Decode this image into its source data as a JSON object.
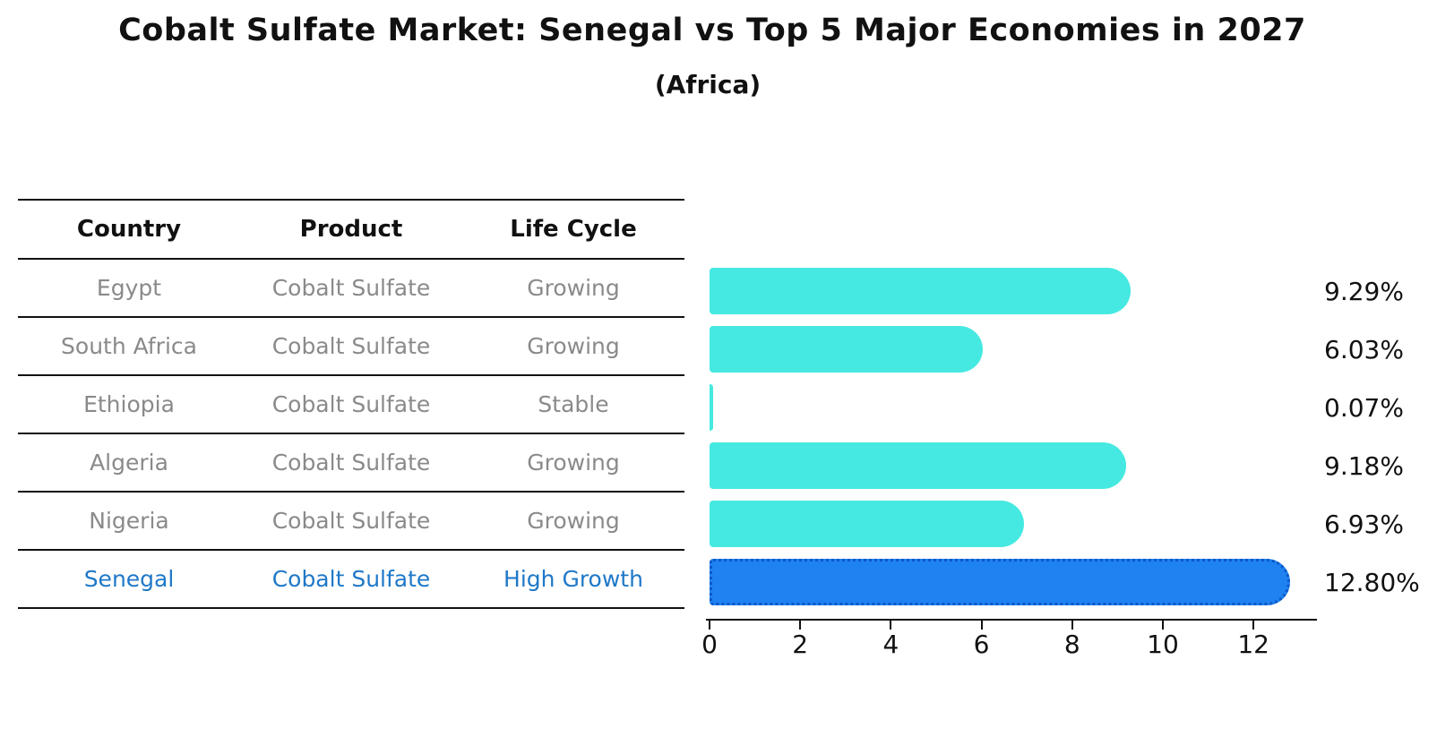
{
  "header": {
    "title": "Cobalt Sulfate Market: Senegal vs Top 5 Major Economies in 2027",
    "subtitle": "(Africa)"
  },
  "table": {
    "headers": [
      "Country",
      "Product",
      "Life Cycle"
    ],
    "rows": [
      {
        "country": "Egypt",
        "product": "Cobalt Sulfate",
        "life_cycle": "Growing",
        "highlight": false
      },
      {
        "country": "South Africa",
        "product": "Cobalt Sulfate",
        "life_cycle": "Growing",
        "highlight": false
      },
      {
        "country": "Ethiopia",
        "product": "Cobalt Sulfate",
        "life_cycle": "Stable",
        "highlight": false
      },
      {
        "country": "Algeria",
        "product": "Cobalt Sulfate",
        "life_cycle": "Growing",
        "highlight": false
      },
      {
        "country": "Nigeria",
        "product": "Cobalt Sulfate",
        "life_cycle": "Growing",
        "highlight": false
      },
      {
        "country": "Senegal",
        "product": "Cobalt Sulfate",
        "life_cycle": "High Growth",
        "highlight": true
      }
    ]
  },
  "chart_data": {
    "type": "bar",
    "orientation": "horizontal",
    "title": "Cobalt Sulfate Market: Senegal vs Top 5 Major Economies in 2027",
    "subtitle": "(Africa)",
    "categories": [
      "Egypt",
      "South Africa",
      "Ethiopia",
      "Algeria",
      "Nigeria",
      "Senegal"
    ],
    "values": [
      9.29,
      6.03,
      0.07,
      9.18,
      6.93,
      12.8
    ],
    "value_labels": [
      "9.29%",
      "6.03%",
      "0.07%",
      "9.18%",
      "6.93%",
      "12.80%"
    ],
    "x_ticks": [
      0,
      2,
      4,
      6,
      8,
      10,
      12
    ],
    "xlim": [
      0,
      13.4
    ],
    "grid": false,
    "legend": false,
    "highlight_index": 5,
    "bar_color": "#46E9E1",
    "highlight_color": "#1E82F0",
    "highlight_text_color": "#1f78c8"
  }
}
